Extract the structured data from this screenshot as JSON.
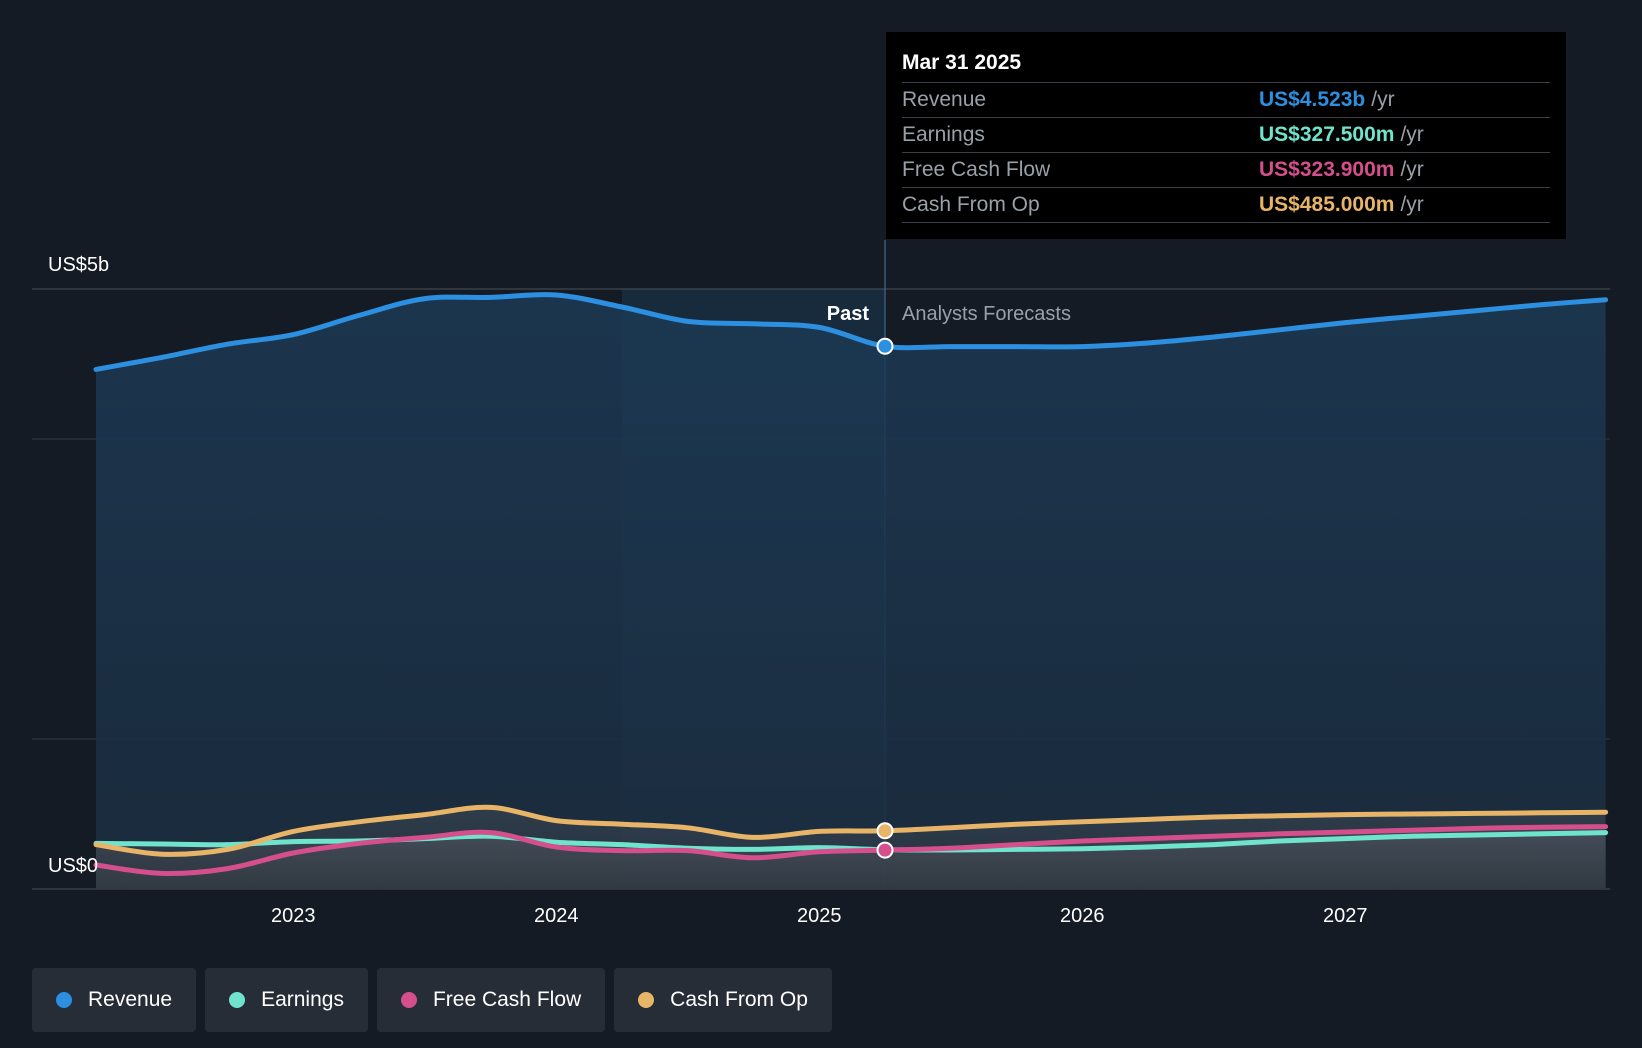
{
  "chart_data": {
    "type": "area",
    "y_axis": {
      "top_label": "US$5b",
      "bottom_label": "US$0",
      "ylim": [
        0,
        5000
      ]
    },
    "x_ticks": [
      "2023",
      "2024",
      "2025",
      "2026",
      "2027"
    ],
    "xlim": [
      2022.25,
      2027.99
    ],
    "past_label": "Past",
    "forecast_label": "Analysts Forecasts",
    "divider_x": 2025.25,
    "highlight_start_x": 2024.25,
    "series": [
      {
        "name": "Revenue",
        "color": "#2d8fe0",
        "points": [
          [
            2022.25,
            4330
          ],
          [
            2022.5,
            4430
          ],
          [
            2022.75,
            4540
          ],
          [
            2023.0,
            4620
          ],
          [
            2023.25,
            4780
          ],
          [
            2023.5,
            4920
          ],
          [
            2023.75,
            4930
          ],
          [
            2024.0,
            4950
          ],
          [
            2024.25,
            4850
          ],
          [
            2024.5,
            4730
          ],
          [
            2024.75,
            4710
          ],
          [
            2025.0,
            4680
          ],
          [
            2025.25,
            4523
          ],
          [
            2025.5,
            4520
          ],
          [
            2025.75,
            4520
          ],
          [
            2026.0,
            4520
          ],
          [
            2026.25,
            4550
          ],
          [
            2026.5,
            4600
          ],
          [
            2026.75,
            4660
          ],
          [
            2027.0,
            4720
          ],
          [
            2027.25,
            4770
          ],
          [
            2027.5,
            4820
          ],
          [
            2027.75,
            4870
          ],
          [
            2027.99,
            4910
          ]
        ]
      },
      {
        "name": "Earnings",
        "color": "#6fe3cc",
        "points": [
          [
            2022.25,
            380
          ],
          [
            2022.5,
            375
          ],
          [
            2022.75,
            370
          ],
          [
            2023.0,
            395
          ],
          [
            2023.25,
            400
          ],
          [
            2023.5,
            420
          ],
          [
            2023.75,
            440
          ],
          [
            2024.0,
            390
          ],
          [
            2024.25,
            370
          ],
          [
            2024.5,
            340
          ],
          [
            2024.75,
            330
          ],
          [
            2025.0,
            345
          ],
          [
            2025.25,
            327.5
          ],
          [
            2025.5,
            325
          ],
          [
            2025.75,
            330
          ],
          [
            2026.0,
            335
          ],
          [
            2026.25,
            350
          ],
          [
            2026.5,
            370
          ],
          [
            2026.75,
            400
          ],
          [
            2027.0,
            420
          ],
          [
            2027.25,
            440
          ],
          [
            2027.5,
            450
          ],
          [
            2027.75,
            460
          ],
          [
            2027.99,
            470
          ]
        ]
      },
      {
        "name": "Free Cash Flow",
        "color": "#d44f8c",
        "points": [
          [
            2022.25,
            200
          ],
          [
            2022.5,
            130
          ],
          [
            2022.75,
            170
          ],
          [
            2023.0,
            300
          ],
          [
            2023.25,
            380
          ],
          [
            2023.5,
            430
          ],
          [
            2023.75,
            470
          ],
          [
            2024.0,
            350
          ],
          [
            2024.25,
            320
          ],
          [
            2024.5,
            320
          ],
          [
            2024.75,
            260
          ],
          [
            2025.0,
            310
          ],
          [
            2025.25,
            323.9
          ],
          [
            2025.5,
            340
          ],
          [
            2025.75,
            370
          ],
          [
            2026.0,
            400
          ],
          [
            2026.25,
            420
          ],
          [
            2026.5,
            440
          ],
          [
            2026.75,
            460
          ],
          [
            2027.0,
            475
          ],
          [
            2027.25,
            490
          ],
          [
            2027.5,
            505
          ],
          [
            2027.75,
            515
          ],
          [
            2027.99,
            520
          ]
        ]
      },
      {
        "name": "Cash From Op",
        "color": "#e8b468",
        "points": [
          [
            2022.25,
            370
          ],
          [
            2022.5,
            290
          ],
          [
            2022.75,
            330
          ],
          [
            2023.0,
            480
          ],
          [
            2023.25,
            560
          ],
          [
            2023.5,
            620
          ],
          [
            2023.75,
            680
          ],
          [
            2024.0,
            570
          ],
          [
            2024.25,
            540
          ],
          [
            2024.5,
            510
          ],
          [
            2024.75,
            430
          ],
          [
            2025.0,
            480
          ],
          [
            2025.25,
            485
          ],
          [
            2025.5,
            510
          ],
          [
            2025.75,
            540
          ],
          [
            2026.0,
            560
          ],
          [
            2026.25,
            580
          ],
          [
            2026.5,
            600
          ],
          [
            2026.75,
            610
          ],
          [
            2027.0,
            620
          ],
          [
            2027.25,
            625
          ],
          [
            2027.5,
            630
          ],
          [
            2027.75,
            635
          ],
          [
            2027.99,
            640
          ]
        ]
      }
    ]
  },
  "tooltip": {
    "date": "Mar 31 2025",
    "rows": [
      {
        "label": "Revenue",
        "value": "US$4.523b",
        "unit": "/yr",
        "color": "#2d8fe0"
      },
      {
        "label": "Earnings",
        "value": "US$327.500m",
        "unit": "/yr",
        "color": "#6fe3cc"
      },
      {
        "label": "Free Cash Flow",
        "value": "US$323.900m",
        "unit": "/yr",
        "color": "#d44f8c"
      },
      {
        "label": "Cash From Op",
        "value": "US$485.000m",
        "unit": "/yr",
        "color": "#e8b468"
      }
    ]
  },
  "legend": [
    {
      "label": "Revenue",
      "color": "#2d8fe0"
    },
    {
      "label": "Earnings",
      "color": "#6fe3cc"
    },
    {
      "label": "Free Cash Flow",
      "color": "#d44f8c"
    },
    {
      "label": "Cash From Op",
      "color": "#e8b468"
    }
  ]
}
